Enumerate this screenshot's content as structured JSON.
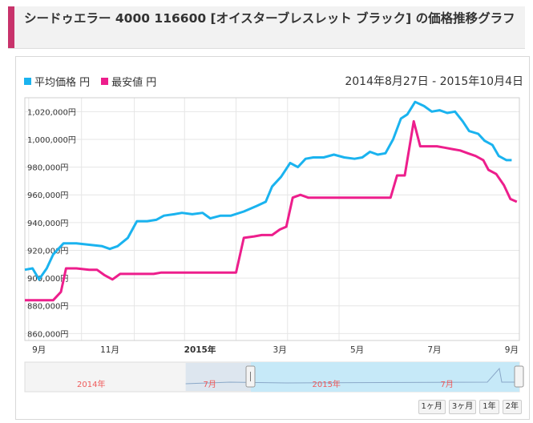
{
  "header": {
    "title": "シードゥエラー 4000 116600 [オイスターブレスレット ブラック] の価格推移グラフ"
  },
  "legend": {
    "avg_label": "平均価格 円",
    "min_label": "最安値 円"
  },
  "date_range": "2014年8月27日 - 2015年10月4日",
  "range_buttons": [
    "1ヶ月",
    "3ヶ月",
    "1年",
    "2年"
  ],
  "colors": {
    "avg": "#1ab3ef",
    "min": "#ed1e8c",
    "accent": "#c8336b"
  },
  "navigator": {
    "labels": [
      {
        "text": "2014年",
        "month": 3.3
      },
      {
        "text": "7月",
        "month": 9.2
      },
      {
        "text": "2015年",
        "month": 15.0
      },
      {
        "text": "7月",
        "month": 21.0
      }
    ]
  },
  "chart_data": {
    "type": "line",
    "title": "",
    "xlabel": "",
    "ylabel": "",
    "x_ticks": [
      "9月",
      "11月",
      "2015年",
      "3月",
      "5月",
      "7月",
      "9月"
    ],
    "ylim": [
      855000,
      1030000
    ],
    "y_ticks": [
      "860,000円",
      "880,000円",
      "900,000円",
      "920,000円",
      "940,000円",
      "960,000円",
      "980,000円",
      "1,000,000円",
      "1,020,000円"
    ],
    "series": [
      {
        "name": "平均価格 円",
        "points": [
          [
            0,
            906000
          ],
          [
            0.3,
            907000
          ],
          [
            0.55,
            899000
          ],
          [
            0.85,
            907000
          ],
          [
            1.1,
            917000
          ],
          [
            1.5,
            925000
          ],
          [
            2.0,
            925000
          ],
          [
            2.5,
            924000
          ],
          [
            3.0,
            923000
          ],
          [
            3.3,
            921000
          ],
          [
            3.6,
            923000
          ],
          [
            4.0,
            929000
          ],
          [
            4.35,
            941000
          ],
          [
            4.75,
            941000
          ],
          [
            5.1,
            942000
          ],
          [
            5.4,
            945000
          ],
          [
            5.8,
            946000
          ],
          [
            6.1,
            947000
          ],
          [
            6.5,
            946000
          ],
          [
            6.9,
            947000
          ],
          [
            7.2,
            943000
          ],
          [
            7.6,
            945000
          ],
          [
            8.0,
            945000
          ],
          [
            8.5,
            948000
          ],
          [
            9.0,
            952000
          ],
          [
            9.35,
            955000
          ],
          [
            9.6,
            966000
          ],
          [
            9.95,
            973000
          ],
          [
            10.3,
            983000
          ],
          [
            10.6,
            980000
          ],
          [
            10.9,
            986000
          ],
          [
            11.2,
            987000
          ],
          [
            11.6,
            987000
          ],
          [
            12.0,
            989000
          ],
          [
            12.4,
            987000
          ],
          [
            12.8,
            986000
          ],
          [
            13.1,
            987000
          ],
          [
            13.4,
            991000
          ],
          [
            13.7,
            989000
          ],
          [
            14.0,
            990000
          ],
          [
            14.3,
            1000000
          ],
          [
            14.6,
            1015000
          ],
          [
            14.85,
            1018000
          ],
          [
            15.15,
            1027000
          ],
          [
            15.5,
            1024000
          ],
          [
            15.8,
            1020000
          ],
          [
            16.1,
            1021000
          ],
          [
            16.4,
            1019000
          ],
          [
            16.7,
            1020000
          ],
          [
            17.0,
            1013000
          ],
          [
            17.25,
            1006000
          ],
          [
            17.6,
            1004000
          ],
          [
            17.85,
            999000
          ],
          [
            18.15,
            996000
          ],
          [
            18.4,
            988000
          ],
          [
            18.7,
            985000
          ],
          [
            18.9,
            985000
          ]
        ]
      },
      {
        "name": "最安値 円",
        "points": [
          [
            0,
            884000
          ],
          [
            0.5,
            884000
          ],
          [
            1.1,
            884000
          ],
          [
            1.4,
            890000
          ],
          [
            1.6,
            907000
          ],
          [
            2.0,
            907000
          ],
          [
            2.5,
            906000
          ],
          [
            2.8,
            906000
          ],
          [
            3.1,
            902000
          ],
          [
            3.4,
            899000
          ],
          [
            3.7,
            903000
          ],
          [
            4.1,
            903000
          ],
          [
            4.6,
            903000
          ],
          [
            5.0,
            903000
          ],
          [
            5.3,
            904000
          ],
          [
            5.8,
            904000
          ],
          [
            6.5,
            904000
          ],
          [
            7.0,
            904000
          ],
          [
            7.5,
            904000
          ],
          [
            8.0,
            904000
          ],
          [
            8.2,
            904000
          ],
          [
            8.5,
            929000
          ],
          [
            8.9,
            930000
          ],
          [
            9.2,
            931000
          ],
          [
            9.6,
            931000
          ],
          [
            9.9,
            935000
          ],
          [
            10.15,
            937000
          ],
          [
            10.4,
            958000
          ],
          [
            10.7,
            960000
          ],
          [
            11.0,
            958000
          ],
          [
            11.5,
            958000
          ],
          [
            12.0,
            958000
          ],
          [
            12.5,
            958000
          ],
          [
            13.0,
            958000
          ],
          [
            13.5,
            958000
          ],
          [
            14.0,
            958000
          ],
          [
            14.2,
            958000
          ],
          [
            14.45,
            974000
          ],
          [
            14.75,
            974000
          ],
          [
            15.1,
            1013000
          ],
          [
            15.35,
            995000
          ],
          [
            15.7,
            995000
          ],
          [
            16.0,
            995000
          ],
          [
            16.3,
            994000
          ],
          [
            16.6,
            993000
          ],
          [
            16.9,
            992000
          ],
          [
            17.2,
            990000
          ],
          [
            17.5,
            988000
          ],
          [
            17.8,
            985000
          ],
          [
            18.0,
            978000
          ],
          [
            18.3,
            975000
          ],
          [
            18.6,
            967000
          ],
          [
            18.85,
            957000
          ],
          [
            19.1,
            955000
          ]
        ]
      }
    ],
    "grid": true,
    "legend": "top-left"
  }
}
